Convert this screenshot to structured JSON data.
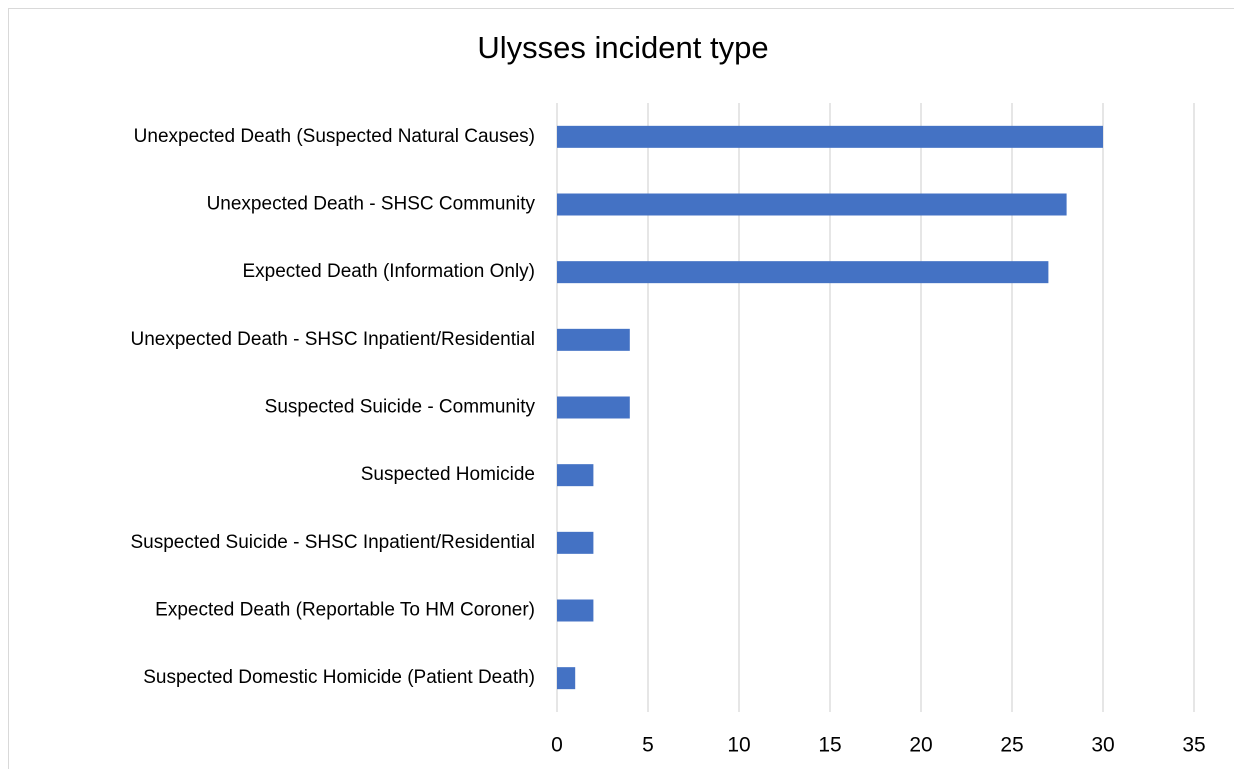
{
  "chart_data": {
    "type": "barh",
    "title": "Ulysses incident type",
    "categories": [
      "Unexpected Death (Suspected Natural Causes)",
      "Unexpected Death - SHSC Community",
      "Expected Death (Information Only)",
      "Unexpected Death - SHSC Inpatient/Residential",
      "Suspected Suicide - Community",
      "Suspected Homicide",
      "Suspected Suicide - SHSC Inpatient/Residential",
      "Expected Death (Reportable To HM Coroner)",
      "Suspected Domestic Homicide (Patient Death)"
    ],
    "values": [
      30,
      28,
      27,
      4,
      4,
      2,
      2,
      2,
      1
    ],
    "color": "#4472c4",
    "xlim": [
      0,
      35
    ],
    "xticks": [
      0,
      5,
      10,
      15,
      20,
      25,
      30,
      35
    ],
    "grid": true
  }
}
